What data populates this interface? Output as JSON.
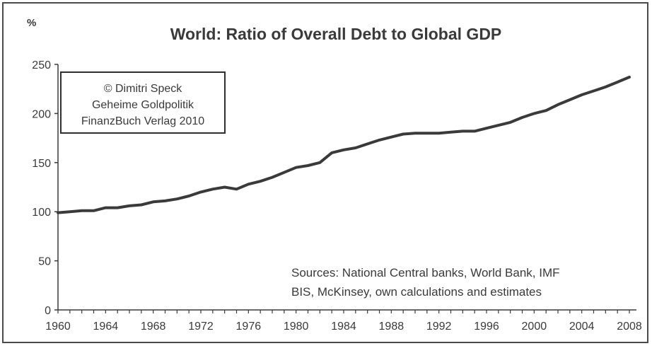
{
  "chart_data": {
    "type": "line",
    "title": "World: Ratio of Overall Debt to Global GDP",
    "unit_label": "%",
    "xlabel": "",
    "ylabel": "",
    "xlim": [
      1960,
      2008
    ],
    "ylim": [
      0,
      250
    ],
    "y_ticks": [
      0,
      50,
      100,
      150,
      200,
      250
    ],
    "x_ticks": [
      1960,
      1964,
      1968,
      1972,
      1976,
      1980,
      1984,
      1988,
      1992,
      1996,
      2000,
      2004,
      2008
    ],
    "grid": false,
    "legend": "none",
    "line_color": "#3a3a3a",
    "series": [
      {
        "x": [
          1960,
          1961,
          1962,
          1963,
          1964,
          1965,
          1966,
          1967,
          1968,
          1969,
          1970,
          1971,
          1972,
          1973,
          1974,
          1975,
          1976,
          1977,
          1978,
          1979,
          1980,
          1981,
          1982,
          1983,
          1984,
          1985,
          1986,
          1987,
          1988,
          1989,
          1990,
          1991,
          1992,
          1993,
          1994,
          1995,
          1996,
          1997,
          1998,
          1999,
          2000,
          2001,
          2002,
          2003,
          2004,
          2005,
          2006,
          2007,
          2008
        ],
        "values": [
          99,
          100,
          101,
          101,
          104,
          104,
          106,
          107,
          110,
          111,
          113,
          116,
          120,
          123,
          125,
          123,
          128,
          131,
          135,
          140,
          145,
          147,
          150,
          160,
          163,
          165,
          169,
          173,
          176,
          179,
          180,
          180,
          180,
          181,
          182,
          182,
          185,
          188,
          191,
          196,
          200,
          203,
          209,
          214,
          219,
          223,
          227,
          232,
          237
        ]
      }
    ],
    "annotations": {
      "credit": [
        "© Dimitri Speck",
        "Geheime Goldpolitik",
        "FinanzBuch Verlag 2010"
      ],
      "sources": [
        "Sources: National Central banks, World Bank, IMF",
        "BIS, McKinsey, own calculations and estimates"
      ]
    }
  }
}
